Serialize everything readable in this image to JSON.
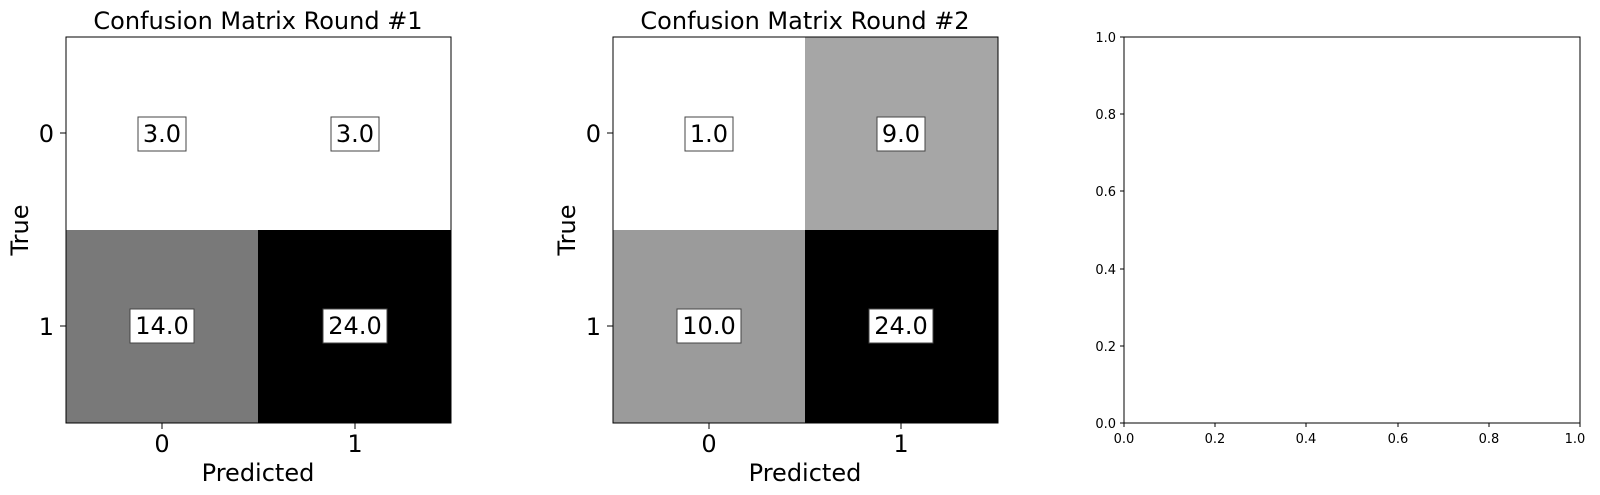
{
  "chart_data": [
    {
      "type": "heatmap",
      "title": "Confusion Matrix Round #1",
      "xlabel": "Predicted",
      "ylabel": "True",
      "x_categories": [
        "0",
        "1"
      ],
      "y_categories": [
        "0",
        "1"
      ],
      "values": [
        [
          3.0,
          3.0
        ],
        [
          14.0,
          24.0
        ]
      ],
      "value_labels": [
        [
          "3.0",
          "3.0"
        ],
        [
          "14.0",
          "24.0"
        ]
      ],
      "colormap": "greys",
      "grid": false
    },
    {
      "type": "heatmap",
      "title": "Confusion Matrix Round #2",
      "xlabel": "Predicted",
      "ylabel": "True",
      "x_categories": [
        "0",
        "1"
      ],
      "y_categories": [
        "0",
        "1"
      ],
      "values": [
        [
          1.0,
          9.0
        ],
        [
          10.0,
          24.0
        ]
      ],
      "value_labels": [
        [
          "1.0",
          "9.0"
        ],
        [
          "10.0",
          "24.0"
        ]
      ],
      "colormap": "greys",
      "grid": false
    },
    {
      "type": "scatter",
      "title": "",
      "xlabel": "",
      "ylabel": "",
      "xlim": [
        0.0,
        1.0
      ],
      "ylim": [
        0.0,
        1.0
      ],
      "xticks": [
        "0.0",
        "0.2",
        "0.4",
        "0.6",
        "0.8",
        "1.0"
      ],
      "yticks": [
        "0.0",
        "0.2",
        "0.4",
        "0.6",
        "0.8",
        "1.0"
      ],
      "series": [],
      "grid": false
    }
  ]
}
